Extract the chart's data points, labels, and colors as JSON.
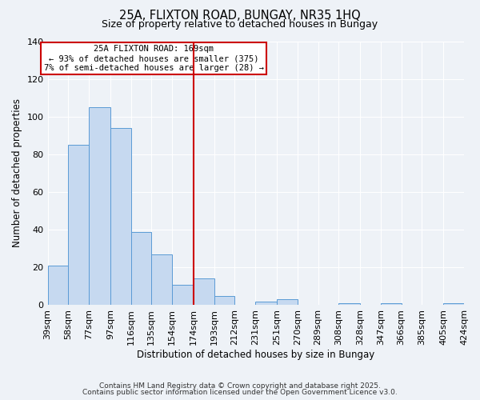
{
  "title": "25A, FLIXTON ROAD, BUNGAY, NR35 1HQ",
  "subtitle": "Size of property relative to detached houses in Bungay",
  "xlabel": "Distribution of detached houses by size in Bungay",
  "ylabel": "Number of detached properties",
  "bar_color": "#c6d9f0",
  "bar_edge_color": "#5b9bd5",
  "background_color": "#eef2f7",
  "grid_color": "#ffffff",
  "vline_x": 174,
  "vline_color": "#cc0000",
  "annotation_title": "25A FLIXTON ROAD: 169sqm",
  "annotation_line1": "← 93% of detached houses are smaller (375)",
  "annotation_line2": "7% of semi-detached houses are larger (28) →",
  "annotation_box_color": "#ffffff",
  "annotation_box_edge": "#cc0000",
  "bins": [
    39,
    58,
    77,
    97,
    116,
    135,
    154,
    174,
    193,
    212,
    231,
    251,
    270,
    289,
    308,
    328,
    347,
    366,
    385,
    405,
    424
  ],
  "bin_labels": [
    "39sqm",
    "58sqm",
    "77sqm",
    "97sqm",
    "116sqm",
    "135sqm",
    "154sqm",
    "174sqm",
    "193sqm",
    "212sqm",
    "231sqm",
    "251sqm",
    "270sqm",
    "289sqm",
    "308sqm",
    "328sqm",
    "347sqm",
    "366sqm",
    "385sqm",
    "405sqm",
    "424sqm"
  ],
  "values": [
    21,
    85,
    105,
    94,
    39,
    27,
    11,
    14,
    5,
    0,
    2,
    3,
    0,
    0,
    1,
    0,
    1,
    0,
    0,
    1
  ],
  "ylim": [
    0,
    140
  ],
  "yticks": [
    0,
    20,
    40,
    60,
    80,
    100,
    120,
    140
  ],
  "footer1": "Contains HM Land Registry data © Crown copyright and database right 2025.",
  "footer2": "Contains public sector information licensed under the Open Government Licence v3.0."
}
